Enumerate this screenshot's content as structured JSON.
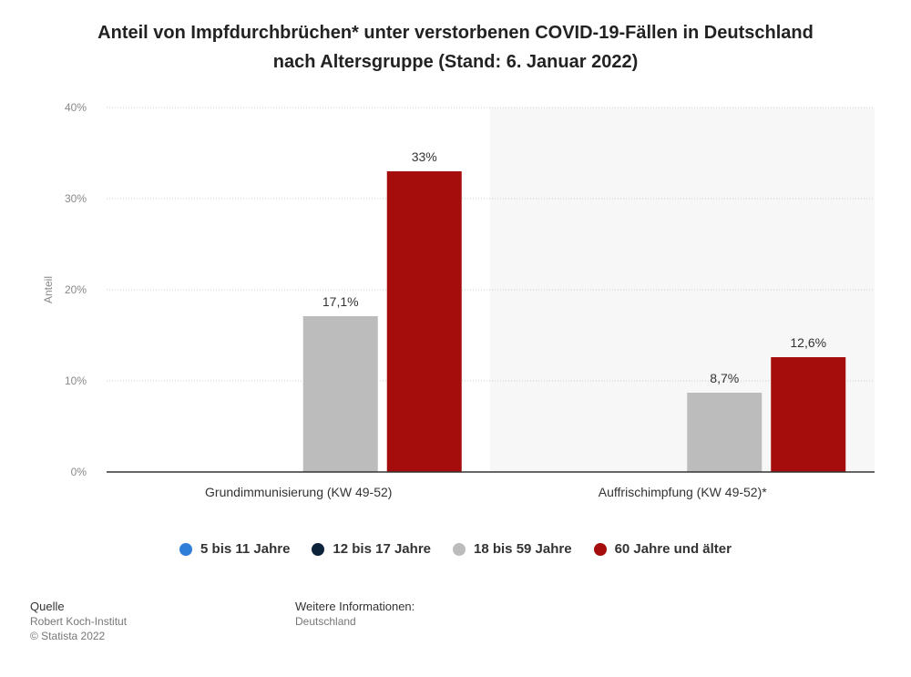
{
  "title_line1": "Anteil von Impfdurchbrüchen* unter verstorbenen COVID-19-Fällen in Deutschland",
  "title_line2": "nach Altersgruppe (Stand: 6. Januar 2022)",
  "chart_data": {
    "type": "bar",
    "ylabel": "Anteil",
    "ylim": [
      0,
      40
    ],
    "yticks": [
      "0%",
      "10%",
      "20%",
      "30%",
      "40%"
    ],
    "categories": [
      "Grundimmunisierung (KW 49-52)",
      "Auffrischimpfung (KW 49-52)*"
    ],
    "series": [
      {
        "name": "5 bis 11 Jahre",
        "color": "#2f7ed8",
        "values": [
          0,
          0
        ],
        "labels": [
          "",
          ""
        ]
      },
      {
        "name": "12 bis 17 Jahre",
        "color": "#0d233a",
        "values": [
          0,
          0
        ],
        "labels": [
          "",
          ""
        ]
      },
      {
        "name": "18 bis 59 Jahre",
        "color": "#bcbcbc",
        "values": [
          17.1,
          8.7
        ],
        "labels": [
          "17,1%",
          "8,7%"
        ]
      },
      {
        "name": "60 Jahre und älter",
        "color": "#a50c0c",
        "values": [
          33,
          12.6
        ],
        "labels": [
          "33%",
          "12,6%"
        ]
      }
    ],
    "grid": true,
    "legend_position": "bottom"
  },
  "footer": {
    "source_heading": "Quelle",
    "source_name": "Robert Koch-Institut",
    "copyright": "© Statista 2022",
    "info_heading": "Weitere Informationen:",
    "info_region": "Deutschland"
  }
}
